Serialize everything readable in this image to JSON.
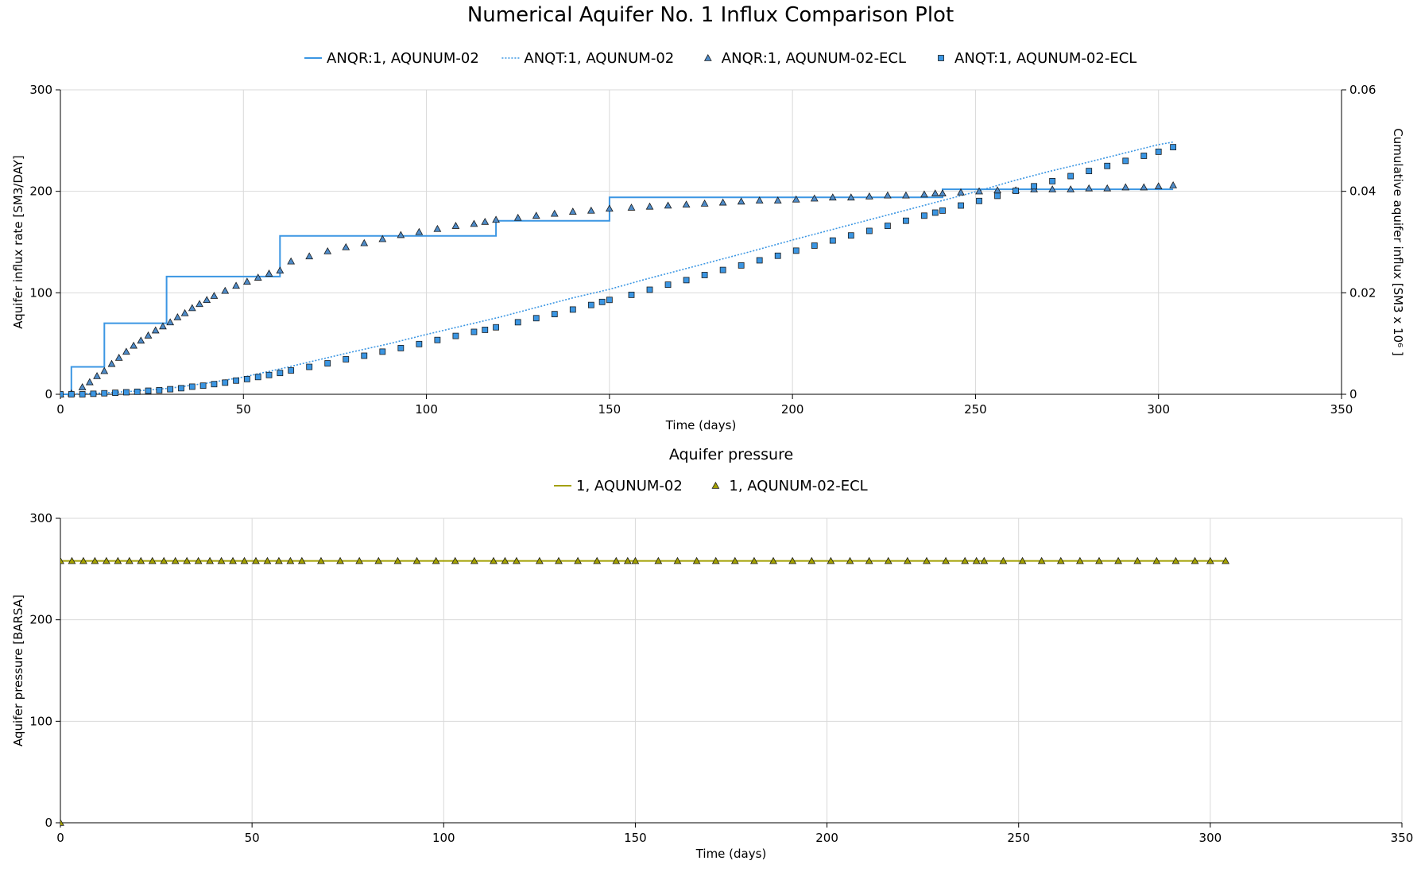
{
  "title": "Numerical Aquifer No. 1 Influx Comparison Plot",
  "colors": {
    "rate_line": "#3b96e3",
    "cum_line": "#3b96e3",
    "rate_marker_fill": "#4f8cc9",
    "cum_marker_fill": "#3b96e3",
    "marker_stroke": "#1a1a1a",
    "pressure_line": "#a3a000",
    "pressure_marker_fill": "#a3a000",
    "grid": "#d9d9d9"
  },
  "chart_data": [
    {
      "type": "line",
      "title": "",
      "legend": [
        {
          "name": "ANQR:1, AQUNUM-02",
          "style": "solid-line"
        },
        {
          "name": "ANQT:1, AQUNUM-02",
          "style": "dotted-line"
        },
        {
          "name": "ANQR:1, AQUNUM-02-ECL",
          "style": "triangle"
        },
        {
          "name": "ANQT:1, AQUNUM-02-ECL",
          "style": "square"
        }
      ],
      "legend_position": "top-center",
      "xlabel": "Time (days)",
      "ylabel": "Aquifer influx rate [SM3/DAY]",
      "y2label": "Cumulative aquifer influx [SM3 x 10⁶ ]",
      "xlim": [
        0,
        350
      ],
      "ylim": [
        0,
        300
      ],
      "y2lim": [
        0,
        0.06
      ],
      "xticks": [
        "0",
        "50",
        "100",
        "150",
        "200",
        "250",
        "300",
        "350"
      ],
      "yticks": [
        "0",
        "100",
        "200",
        "300"
      ],
      "y2ticks": [
        "0",
        "0.02",
        "0.04",
        "0.06"
      ],
      "grid": true,
      "series": [
        {
          "name": "ANQR:1, AQUNUM-02",
          "kind": "step",
          "axis": "left",
          "x": [
            0,
            3,
            3,
            12,
            12,
            29,
            29,
            60,
            60,
            119,
            119,
            150,
            150,
            241,
            241,
            304
          ],
          "y": [
            0,
            0,
            27,
            27,
            70,
            70,
            116,
            116,
            156,
            156,
            171,
            171,
            194,
            194,
            202,
            202
          ]
        },
        {
          "name": "ANQT:1, AQUNUM-02",
          "kind": "dotted",
          "axis": "right",
          "x": [
            0,
            10,
            20,
            30,
            40,
            50,
            60,
            70,
            80,
            90,
            100,
            110,
            120,
            130,
            140,
            150,
            160,
            170,
            180,
            190,
            200,
            210,
            220,
            230,
            240,
            250,
            260,
            270,
            280,
            290,
            300,
            304
          ],
          "y": [
            0,
            0.0002,
            0.0006,
            0.0012,
            0.0022,
            0.0034,
            0.005,
            0.0067,
            0.0084,
            0.01,
            0.0118,
            0.0135,
            0.0152,
            0.0171,
            0.019,
            0.0207,
            0.0227,
            0.0246,
            0.0265,
            0.0284,
            0.0304,
            0.0323,
            0.0342,
            0.0361,
            0.038,
            0.0399,
            0.042,
            0.0439,
            0.0456,
            0.0474,
            0.0492,
            0.0497
          ]
        },
        {
          "name": "ANQR:1, AQUNUM-02-ECL",
          "kind": "triangle",
          "axis": "left",
          "x": [
            0,
            3,
            6,
            8,
            10,
            12,
            14,
            16,
            18,
            20,
            22,
            24,
            26,
            28,
            30,
            32,
            34,
            36,
            38,
            40,
            42,
            45,
            48,
            51,
            54,
            57,
            60,
            63,
            68,
            73,
            78,
            83,
            88,
            93,
            98,
            103,
            108,
            113,
            116,
            119,
            125,
            130,
            135,
            140,
            145,
            150,
            156,
            161,
            166,
            171,
            176,
            181,
            186,
            191,
            196,
            201,
            206,
            211,
            216,
            221,
            226,
            231,
            236,
            239,
            241,
            246,
            251,
            256,
            261,
            266,
            271,
            276,
            281,
            286,
            291,
            296,
            300,
            304
          ],
          "y": [
            0,
            1,
            7,
            12,
            18,
            23,
            30,
            36,
            42,
            48,
            53,
            58,
            63,
            67,
            71,
            76,
            80,
            85,
            89,
            93,
            97,
            102,
            107,
            111,
            115,
            119,
            122,
            131,
            136,
            141,
            145,
            149,
            153,
            157,
            160,
            163,
            166,
            168,
            170,
            172,
            174,
            176,
            178,
            180,
            181,
            183,
            184,
            185,
            186,
            187,
            188,
            189,
            190,
            191,
            191,
            192,
            193,
            194,
            194,
            195,
            196,
            196,
            197,
            198,
            198,
            199,
            200,
            201,
            201,
            202,
            202,
            202,
            203,
            203,
            204,
            204,
            205,
            206
          ]
        },
        {
          "name": "ANQT:1, AQUNUM-02-ECL",
          "kind": "square",
          "axis": "right",
          "x": [
            0,
            3,
            6,
            9,
            12,
            15,
            18,
            21,
            24,
            27,
            30,
            33,
            36,
            39,
            42,
            45,
            48,
            51,
            54,
            57,
            60,
            63,
            68,
            73,
            78,
            83,
            88,
            93,
            98,
            103,
            108,
            113,
            116,
            119,
            125,
            130,
            135,
            140,
            145,
            148,
            150,
            156,
            161,
            166,
            171,
            176,
            181,
            186,
            191,
            196,
            201,
            206,
            211,
            216,
            221,
            226,
            231,
            236,
            239,
            241,
            246,
            251,
            256,
            261,
            266,
            271,
            276,
            281,
            286,
            291,
            296,
            300,
            304
          ],
          "y": [
            0,
            0,
            0,
            0.0001,
            0.0002,
            0.0003,
            0.0004,
            0.0005,
            0.0007,
            0.0008,
            0.001,
            0.0012,
            0.0015,
            0.0017,
            0.002,
            0.0023,
            0.0027,
            0.003,
            0.0034,
            0.0038,
            0.0042,
            0.0047,
            0.0054,
            0.0061,
            0.0069,
            0.0076,
            0.0084,
            0.0091,
            0.0099,
            0.0107,
            0.0115,
            0.0123,
            0.0127,
            0.0132,
            0.0142,
            0.015,
            0.0158,
            0.0167,
            0.0176,
            0.0182,
            0.0186,
            0.0196,
            0.0206,
            0.0216,
            0.0225,
            0.0235,
            0.0245,
            0.0254,
            0.0264,
            0.0273,
            0.0283,
            0.0293,
            0.0303,
            0.0313,
            0.0322,
            0.0332,
            0.0342,
            0.0352,
            0.0358,
            0.0362,
            0.0372,
            0.0381,
            0.0391,
            0.0401,
            0.041,
            0.042,
            0.043,
            0.044,
            0.045,
            0.046,
            0.047,
            0.0478,
            0.0487
          ]
        }
      ]
    },
    {
      "type": "line",
      "title": "Aquifer pressure",
      "legend": [
        {
          "name": "1, AQUNUM-02",
          "style": "solid-line"
        },
        {
          "name": "1, AQUNUM-02-ECL",
          "style": "triangle"
        }
      ],
      "legend_position": "top-center",
      "xlabel": "Time (days)",
      "ylabel": "Aquifer pressure [BARSA]",
      "xlim": [
        0,
        350
      ],
      "ylim": [
        0,
        300
      ],
      "xticks": [
        "0",
        "50",
        "100",
        "150",
        "200",
        "250",
        "300",
        "350"
      ],
      "yticks": [
        "0",
        "100",
        "200",
        "300"
      ],
      "grid": true,
      "series": [
        {
          "name": "1, AQUNUM-02",
          "kind": "line",
          "x": [
            0,
            304
          ],
          "y": [
            258,
            258
          ]
        },
        {
          "name": "1, AQUNUM-02-ECL",
          "kind": "triangle",
          "x": [
            0,
            0,
            3,
            6,
            9,
            12,
            15,
            18,
            21,
            24,
            27,
            30,
            33,
            36,
            39,
            42,
            45,
            48,
            51,
            54,
            57,
            60,
            63,
            68,
            73,
            78,
            83,
            88,
            93,
            98,
            103,
            108,
            113,
            116,
            119,
            125,
            130,
            135,
            140,
            145,
            148,
            150,
            156,
            161,
            166,
            171,
            176,
            181,
            186,
            191,
            196,
            201,
            206,
            211,
            216,
            221,
            226,
            231,
            236,
            239,
            241,
            246,
            251,
            256,
            261,
            266,
            271,
            276,
            281,
            286,
            291,
            296,
            300,
            304
          ],
          "y": [
            0,
            258,
            258,
            258,
            258,
            258,
            258,
            258,
            258,
            258,
            258,
            258,
            258,
            258,
            258,
            258,
            258,
            258,
            258,
            258,
            258,
            258,
            258,
            258,
            258,
            258,
            258,
            258,
            258,
            258,
            258,
            258,
            258,
            258,
            258,
            258,
            258,
            258,
            258,
            258,
            258,
            258,
            258,
            258,
            258,
            258,
            258,
            258,
            258,
            258,
            258,
            258,
            258,
            258,
            258,
            258,
            258,
            258,
            258,
            258,
            258,
            258,
            258,
            258,
            258,
            258,
            258,
            258,
            258,
            258,
            258,
            258,
            258,
            258
          ]
        }
      ]
    }
  ]
}
